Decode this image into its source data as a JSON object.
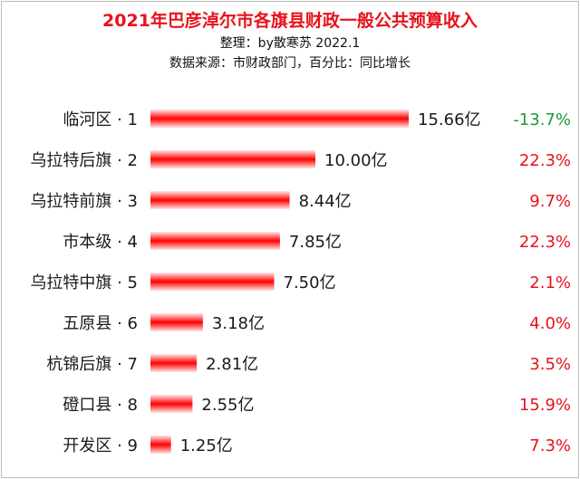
{
  "header": {
    "title": "2021年巴彦淖尔市各旗县财政一般公共预算收入",
    "credit": "整理：by散寒苏  2022.1",
    "source": "数据来源：市财政部门，百分比：同比增长"
  },
  "colors": {
    "title": "#e8121b",
    "bar": "#ff0000",
    "positive": "#e8121b",
    "negative": "#1a9a3a"
  },
  "chart_data": {
    "type": "bar",
    "orientation": "horizontal",
    "unit": "亿",
    "categories": [
      "临河区 · 1",
      "乌拉特后旗 · 2",
      "乌拉特前旗 · 3",
      "市本级 · 4",
      "乌拉特中旗 · 5",
      "五原县 · 6",
      "杭锦后旗 · 7",
      "磴口县 · 8",
      "开发区 · 9"
    ],
    "values": [
      15.66,
      10.0,
      8.44,
      7.85,
      7.5,
      3.18,
      2.81,
      2.55,
      1.25
    ],
    "value_labels": [
      "15.66亿",
      "10.00亿",
      "8.44亿",
      "7.85亿",
      "7.50亿",
      "3.18亿",
      "2.81亿",
      "2.55亿",
      "1.25亿"
    ],
    "growth": [
      -13.7,
      22.3,
      9.7,
      22.3,
      2.1,
      4.0,
      3.5,
      15.9,
      7.3
    ],
    "growth_labels": [
      "-13.7%",
      "22.3%",
      "9.7%",
      "22.3%",
      "2.1%",
      "4.0%",
      "3.5%",
      "15.9%",
      "7.3%"
    ],
    "xlim": [
      0,
      15.66
    ],
    "grid": false,
    "legend": false
  }
}
